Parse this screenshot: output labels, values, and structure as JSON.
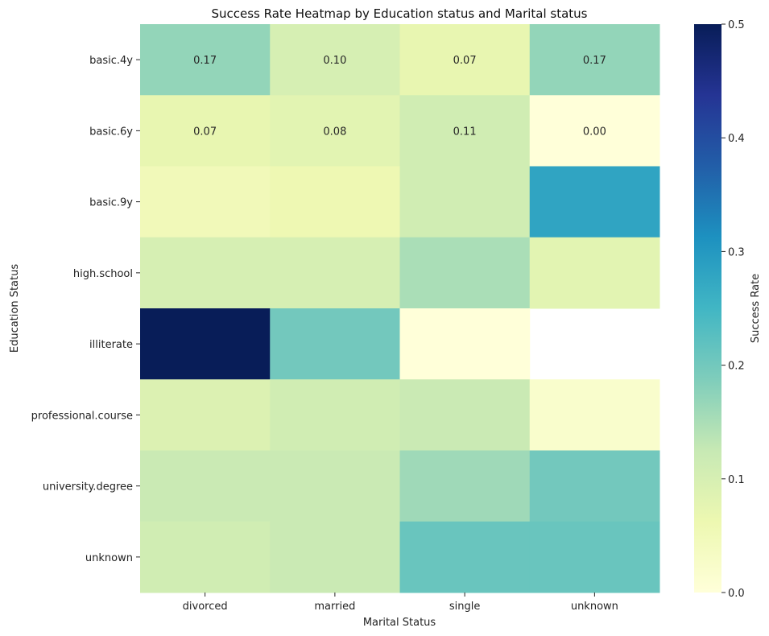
{
  "chart_data": {
    "type": "heatmap",
    "title": "Success Rate Heatmap by Education status and Marital status",
    "xlabel": "Marital Status",
    "ylabel": "Education Status",
    "x_categories": [
      "divorced",
      "married",
      "single",
      "unknown"
    ],
    "y_categories": [
      "basic.4y",
      "basic.6y",
      "basic.9y",
      "high.school",
      "illiterate",
      "professional.course",
      "university.degree",
      "unknown"
    ],
    "values": [
      [
        0.17,
        0.1,
        0.07,
        0.17
      ],
      [
        0.07,
        0.08,
        0.11,
        0.0
      ],
      [
        0.05,
        0.06,
        0.11,
        0.28
      ],
      [
        0.1,
        0.1,
        0.15,
        0.08
      ],
      [
        0.5,
        0.2,
        0.0,
        null
      ],
      [
        0.09,
        0.11,
        0.12,
        0.02
      ],
      [
        0.12,
        0.12,
        0.16,
        0.2
      ],
      [
        0.11,
        0.12,
        0.21,
        0.21
      ]
    ],
    "cell_labels": [
      [
        "0.17",
        "0.10",
        "0.07",
        "0.17"
      ],
      [
        "0.07",
        "0.08",
        "0.11",
        "0.00"
      ],
      [
        "",
        "",
        "",
        ""
      ],
      [
        "",
        "",
        "",
        ""
      ],
      [
        "",
        "",
        "",
        ""
      ],
      [
        "",
        "",
        "",
        ""
      ],
      [
        "",
        "",
        "",
        ""
      ],
      [
        "",
        "",
        "",
        ""
      ]
    ],
    "colorbar": {
      "label": "Success Rate",
      "range": [
        0.0,
        0.5
      ],
      "ticks": [
        "0.0",
        "0.1",
        "0.2",
        "0.3",
        "0.4",
        "0.5"
      ],
      "colormap": "YlGnBu"
    },
    "grid": false
  }
}
